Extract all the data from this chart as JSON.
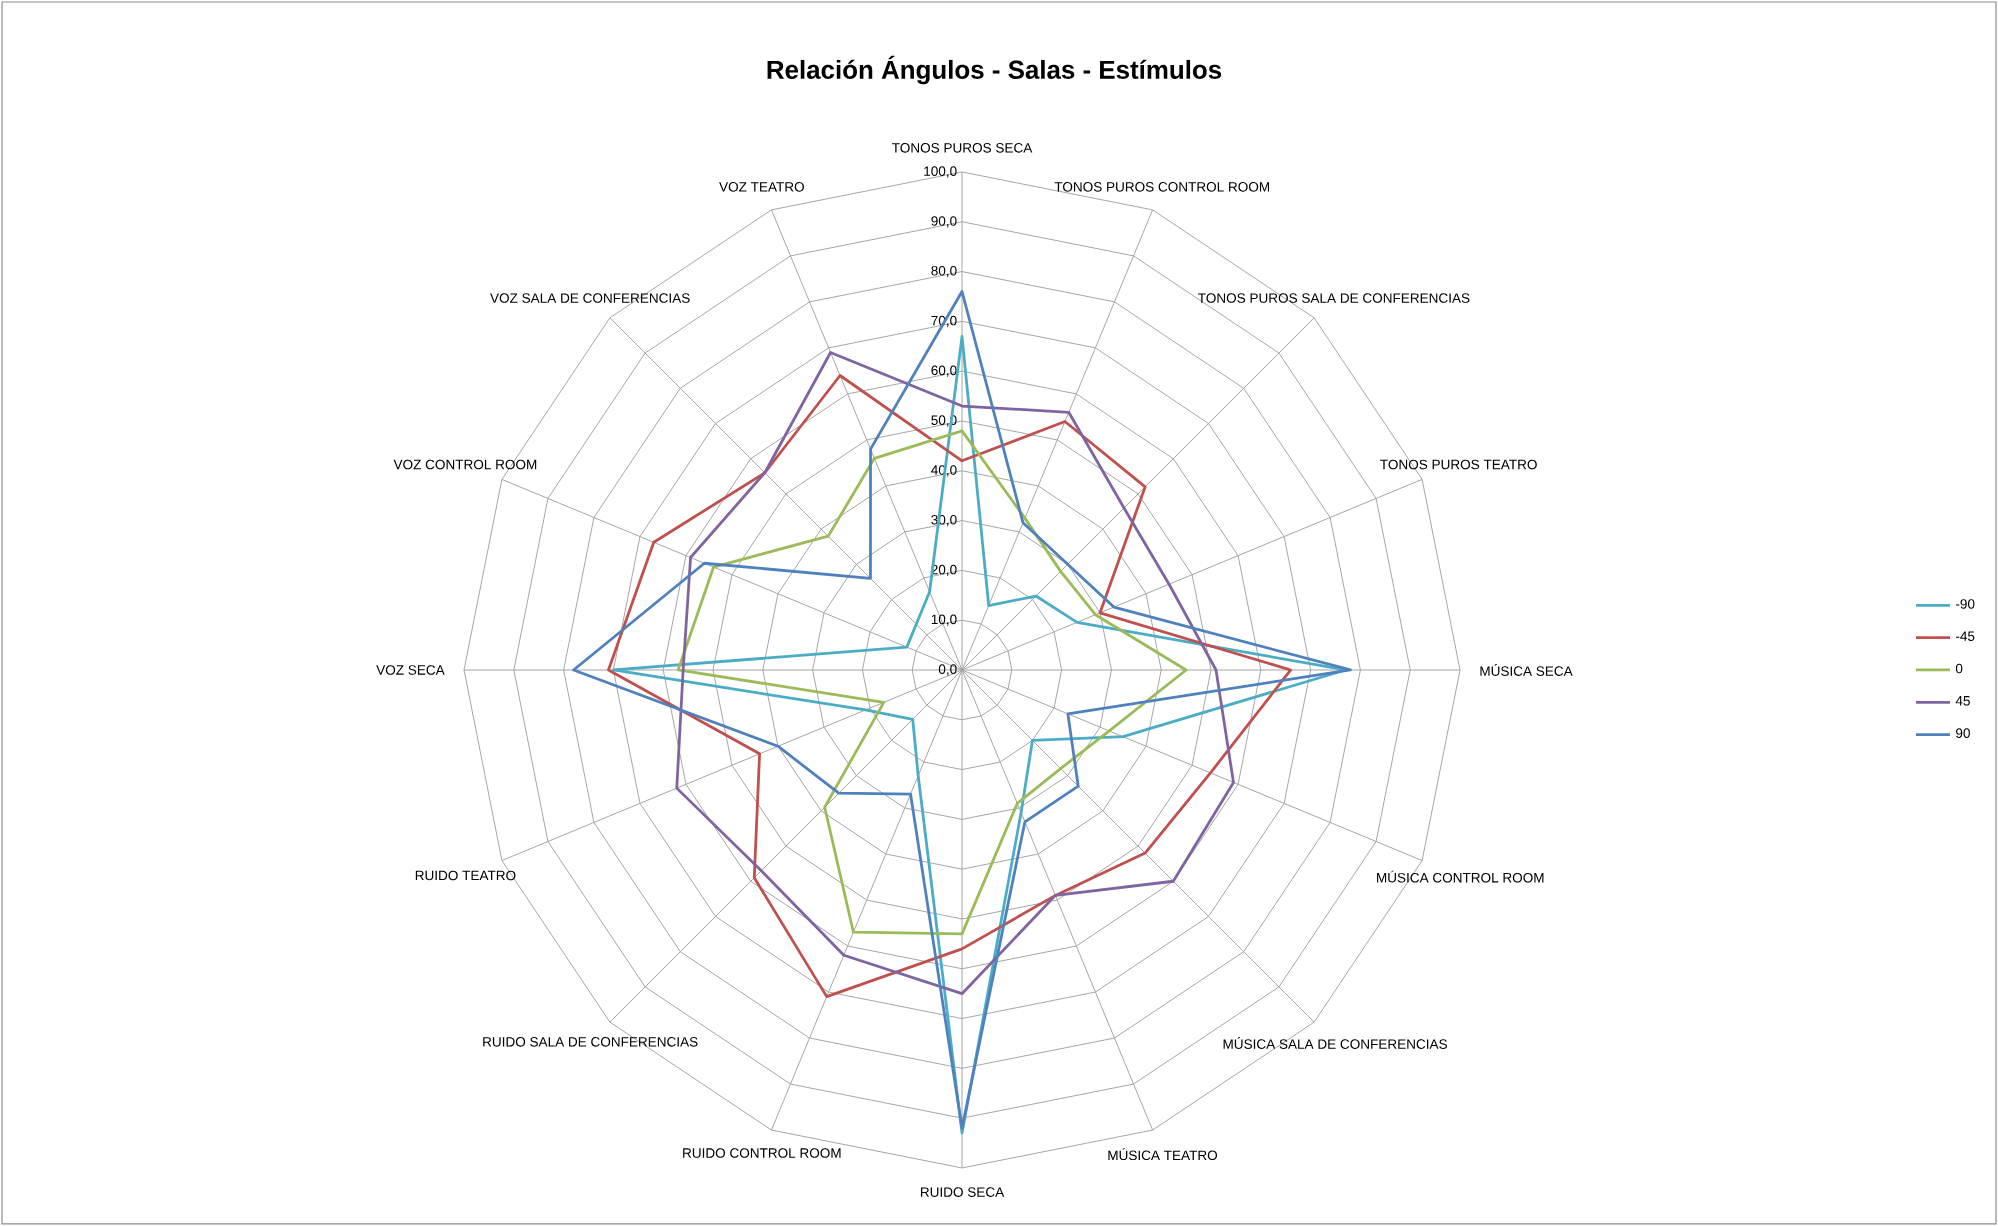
{
  "chart_data": {
    "type": "radar",
    "title": "Relación Ángulos - Salas - Estímulos",
    "categories": [
      "TONOS PUROS SECA",
      "TONOS PUROS CONTROL ROOM",
      "TONOS PUROS SALA DE CONFERENCIAS",
      "TONOS PUROS TEATRO",
      "MÚSICA SECA",
      "MÚSICA CONTROL ROOM",
      "MÚSICA SALA DE CONFERENCIAS",
      "MÚSICA TEATRO",
      "RUIDO SECA",
      "RUIDO CONTROL ROOM",
      "RUIDO SALA DE CONFERENCIAS",
      "RUIDO TEATRO",
      "VOZ SECA",
      "VOZ CONTROL ROOM",
      "VOZ SALA DE CONFERENCIAS",
      "VOZ TEATRO"
    ],
    "series": [
      {
        "name": "-90",
        "color": "#4bacc6",
        "values": [
          67,
          14,
          21,
          25,
          77,
          35,
          20,
          31,
          93,
          23,
          14,
          21,
          70,
          12,
          13,
          17
        ]
      },
      {
        "name": "-45",
        "color": "#c0504d",
        "values": [
          42,
          54,
          52,
          30,
          66,
          54,
          52,
          49,
          56,
          71,
          59,
          44,
          71,
          67,
          56,
          64
        ]
      },
      {
        "name": "0",
        "color": "#9bbb59",
        "values": [
          48,
          33,
          28,
          29,
          45,
          32,
          28,
          29,
          53,
          57,
          39,
          17,
          57,
          54,
          38,
          46
        ]
      },
      {
        "name": "45",
        "color": "#8064a2",
        "values": [
          53,
          56,
          46,
          45,
          51,
          59,
          60,
          49,
          65,
          62,
          57,
          62,
          56,
          59,
          56,
          69
        ]
      },
      {
        "name": "90",
        "color": "#4f81bd",
        "values": [
          76,
          32,
          30,
          33,
          78,
          23,
          33,
          33,
          92,
          27,
          35,
          40,
          78,
          56,
          26,
          48
        ]
      }
    ],
    "ylim": [
      0,
      100
    ],
    "yticks": [
      {
        "value": 0,
        "label": "0,0"
      },
      {
        "value": 10,
        "label": "10,0"
      },
      {
        "value": 20,
        "label": "20,0"
      },
      {
        "value": 30,
        "label": "30,0"
      },
      {
        "value": 40,
        "label": "40,0"
      },
      {
        "value": 50,
        "label": "50,0"
      },
      {
        "value": 60,
        "label": "60,0"
      },
      {
        "value": 70,
        "label": "70,0"
      },
      {
        "value": 80,
        "label": "80,0"
      },
      {
        "value": 90,
        "label": "90,0"
      },
      {
        "value": 100,
        "label": "100,0"
      }
    ],
    "grid": true,
    "legend": "right"
  }
}
